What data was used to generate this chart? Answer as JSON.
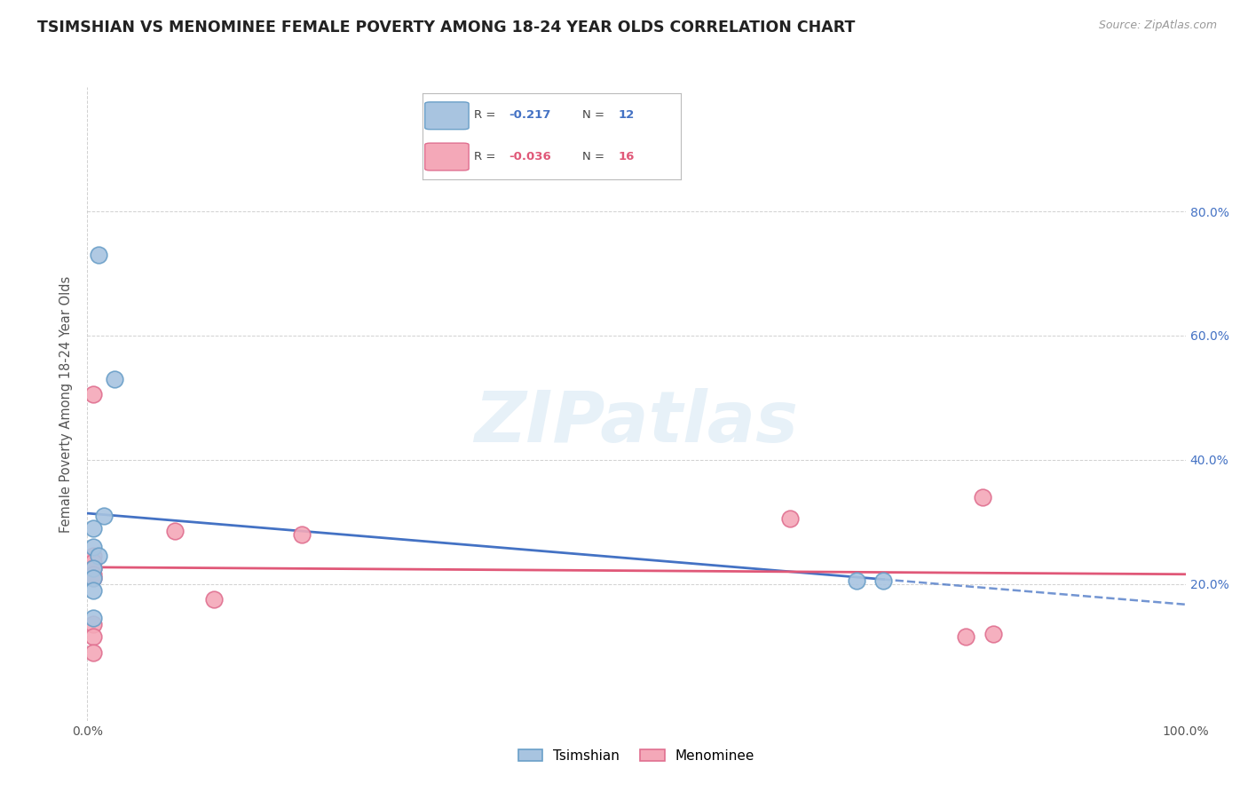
{
  "title": "TSIMSHIAN VS MENOMINEE FEMALE POVERTY AMONG 18-24 YEAR OLDS CORRELATION CHART",
  "source": "Source: ZipAtlas.com",
  "ylabel": "Female Poverty Among 18-24 Year Olds",
  "xlim": [
    0.0,
    1.0
  ],
  "ylim": [
    -0.02,
    1.0
  ],
  "yticks_right": [
    0.2,
    0.4,
    0.6,
    0.8
  ],
  "ytick_labels_right": [
    "20.0%",
    "40.0%",
    "60.0%",
    "80.0%"
  ],
  "xtick_positions": [
    0.0,
    1.0
  ],
  "xtick_labels": [
    "0.0%",
    "100.0%"
  ],
  "background_color": "#ffffff",
  "tsimshian_color": "#a8c4e0",
  "menominee_color": "#f4a8b8",
  "tsimshian_edge_color": "#6a9fc8",
  "menominee_edge_color": "#e07090",
  "tsimshian_line_color": "#4472c4",
  "menominee_line_color": "#e05878",
  "grid_color": "#cccccc",
  "legend_R_color_tsimshian": "#4472c4",
  "legend_R_color_menominee": "#e05878",
  "tsimshian_R": "-0.217",
  "tsimshian_N": "12",
  "menominee_R": "-0.036",
  "menominee_N": "16",
  "tsimshian_points": [
    [
      0.01,
      0.73
    ],
    [
      0.015,
      0.31
    ],
    [
      0.025,
      0.53
    ],
    [
      0.005,
      0.29
    ],
    [
      0.005,
      0.26
    ],
    [
      0.01,
      0.245
    ],
    [
      0.005,
      0.225
    ],
    [
      0.005,
      0.21
    ],
    [
      0.005,
      0.19
    ],
    [
      0.005,
      0.145
    ],
    [
      0.7,
      0.205
    ],
    [
      0.725,
      0.205
    ]
  ],
  "menominee_points": [
    [
      0.005,
      0.505
    ],
    [
      0.005,
      0.245
    ],
    [
      0.005,
      0.235
    ],
    [
      0.005,
      0.225
    ],
    [
      0.005,
      0.215
    ],
    [
      0.005,
      0.21
    ],
    [
      0.005,
      0.135
    ],
    [
      0.005,
      0.115
    ],
    [
      0.005,
      0.09
    ],
    [
      0.08,
      0.285
    ],
    [
      0.115,
      0.175
    ],
    [
      0.195,
      0.28
    ],
    [
      0.64,
      0.305
    ],
    [
      0.8,
      0.115
    ],
    [
      0.815,
      0.34
    ],
    [
      0.825,
      0.12
    ]
  ],
  "solid_line_end_x": 0.725,
  "dashed_line_start_x": 0.725,
  "dashed_line_end_x": 1.0,
  "marker_size": 180
}
